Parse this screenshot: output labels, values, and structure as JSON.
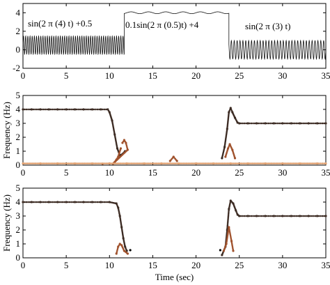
{
  "figure": {
    "xlabel": "Time (sec)",
    "x_ticks": [
      "0",
      "5",
      "10",
      "15",
      "20",
      "25",
      "30",
      "35"
    ]
  },
  "colors": {
    "axis": "#000000",
    "signal": "#111111",
    "series_dark": "#3b2a22",
    "series_mid": "#a0522d",
    "series_light": "#e0a070",
    "series_black": "#000000"
  },
  "chart_data": [
    {
      "type": "line",
      "title": "",
      "xlabel": "",
      "ylabel": "",
      "xlim": [
        0,
        35
      ],
      "ylim": [
        -2,
        5
      ],
      "y_ticks": [
        "-2",
        "0",
        "2",
        "4"
      ],
      "segments": [
        {
          "x_range": [
            0,
            11.7
          ],
          "formula": "sin(2 π (4) t) +0.5",
          "offset": 0.5,
          "amplitude": 1,
          "freq": 4
        },
        {
          "x_range": [
            11.7,
            23.8
          ],
          "formula": "0.1sin(2 π (0.5)t) +4",
          "offset": 4,
          "amplitude": 0.1,
          "freq": 0.5
        },
        {
          "x_range": [
            23.8,
            35.5
          ],
          "formula": "sin(2 π (3) t)",
          "offset": 0,
          "amplitude": 1,
          "freq": 3
        }
      ],
      "annotations": [
        "sin(2 π (4) t) +0.5",
        "0.1sin(2 π (0.5)t) +4",
        "sin(2 π (3) t)"
      ]
    },
    {
      "type": "scatter",
      "xlabel": "",
      "ylabel": "Frequency (Hz)",
      "xlim": [
        0,
        35
      ],
      "ylim": [
        0,
        5
      ],
      "y_ticks": [
        "0",
        "1",
        "2",
        "3",
        "4",
        "5"
      ],
      "series": [
        {
          "values": [
            [
              0,
              4
            ],
            [
              1,
              4
            ],
            [
              2,
              4
            ],
            [
              3,
              4
            ],
            [
              4,
              4
            ],
            [
              5,
              4
            ],
            [
              6,
              4
            ],
            [
              7,
              4
            ],
            [
              8,
              4
            ],
            [
              9,
              4
            ],
            [
              9.8,
              4
            ],
            [
              10,
              3.8
            ],
            [
              10.3,
              3.2
            ],
            [
              10.6,
              2.2
            ],
            [
              10.9,
              1.2
            ],
            [
              11.2,
              0.7
            ],
            [
              11.5,
              0.8
            ],
            [
              11.8,
              1.0
            ]
          ]
        },
        {
          "values": [
            [
              11.5,
              1.6
            ],
            [
              11.7,
              1.8
            ],
            [
              11.9,
              1.6
            ],
            [
              12.1,
              1.1
            ],
            [
              10.4,
              0.1
            ],
            [
              10.8,
              0.4
            ],
            [
              11.0,
              0.6
            ],
            [
              11.3,
              1.2
            ]
          ]
        },
        {
          "values": [
            [
              23,
              0.5
            ],
            [
              23.3,
              1.3
            ],
            [
              23.6,
              2.6
            ],
            [
              23.8,
              3.8
            ],
            [
              24,
              4.1
            ],
            [
              24.2,
              3.8
            ],
            [
              24.5,
              3.4
            ],
            [
              24.8,
              3.05
            ],
            [
              25,
              3
            ],
            [
              26,
              3
            ],
            [
              27,
              3
            ],
            [
              28,
              3
            ],
            [
              29,
              3
            ],
            [
              30,
              3
            ],
            [
              31,
              3
            ],
            [
              32,
              3
            ],
            [
              33,
              3
            ],
            [
              34,
              3
            ],
            [
              35,
              3
            ]
          ]
        },
        {
          "values": [
            [
              23.4,
              0.6
            ],
            [
              23.7,
              1.2
            ],
            [
              23.9,
              1.5
            ],
            [
              24.2,
              1.1
            ],
            [
              24.5,
              0.5
            ],
            [
              9.2,
              0.1
            ],
            [
              17,
              0.3
            ],
            [
              17.4,
              0.6
            ],
            [
              17.8,
              0.3
            ]
          ]
        },
        {
          "values": [
            [
              0,
              0.12
            ],
            [
              2,
              0.12
            ],
            [
              4,
              0.12
            ],
            [
              6,
              0.12
            ],
            [
              8,
              0.12
            ],
            [
              10,
              0.12
            ],
            [
              12,
              0.12
            ],
            [
              14,
              0.12
            ],
            [
              16,
              0.12
            ],
            [
              18,
              0.12
            ],
            [
              20,
              0.12
            ],
            [
              22,
              0.12
            ],
            [
              24,
              0.12
            ],
            [
              26,
              0.12
            ],
            [
              28,
              0.12
            ],
            [
              30,
              0.12
            ],
            [
              32,
              0.12
            ],
            [
              34,
              0.12
            ],
            [
              35,
              0.12
            ]
          ]
        }
      ]
    },
    {
      "type": "scatter",
      "xlabel": "Time (sec)",
      "ylabel": "Frequency (Hz)",
      "xlim": [
        0,
        35
      ],
      "ylim": [
        0,
        5
      ],
      "y_ticks": [
        "0",
        "1",
        "2",
        "3",
        "4",
        "5"
      ],
      "series": [
        {
          "values": [
            [
              0,
              4
            ],
            [
              1,
              4
            ],
            [
              2,
              4
            ],
            [
              3,
              4
            ],
            [
              4,
              4
            ],
            [
              5,
              4
            ],
            [
              6,
              4
            ],
            [
              7,
              4
            ],
            [
              8,
              4
            ],
            [
              9,
              4
            ],
            [
              10,
              4
            ],
            [
              10.8,
              3.9
            ],
            [
              11,
              3.6
            ],
            [
              11.2,
              3.0
            ],
            [
              11.4,
              2.2
            ],
            [
              11.6,
              1.4
            ],
            [
              11.8,
              0.8
            ],
            [
              12,
              0.5
            ]
          ]
        },
        {
          "values": [
            [
              10.8,
              0.3
            ],
            [
              11.0,
              0.8
            ],
            [
              11.2,
              1.0
            ],
            [
              11.4,
              0.9
            ],
            [
              11.7,
              0.5
            ],
            [
              12.1,
              0.3
            ]
          ]
        },
        {
          "values": [
            [
              23,
              0.2
            ],
            [
              23.4,
              0.8
            ],
            [
              23.6,
              2.0
            ],
            [
              23.8,
              3.5
            ],
            [
              24,
              4.1
            ],
            [
              24.3,
              3.9
            ],
            [
              24.6,
              3.4
            ],
            [
              24.8,
              3.1
            ],
            [
              25,
              3.0
            ],
            [
              26,
              3
            ],
            [
              27,
              3
            ],
            [
              28,
              3
            ],
            [
              29,
              3
            ],
            [
              30,
              3
            ],
            [
              31,
              3
            ],
            [
              32,
              3
            ],
            [
              33,
              3
            ],
            [
              34,
              3
            ],
            [
              35,
              3
            ]
          ]
        },
        {
          "values": [
            [
              23.2,
              0.5
            ],
            [
              23.5,
              1.0
            ],
            [
              23.8,
              2.2
            ],
            [
              24.1,
              1.2
            ],
            [
              24.3,
              0.5
            ]
          ]
        },
        {
          "values": [
            [
              12.4,
              0.55
            ],
            [
              22.8,
              0.55
            ]
          ]
        }
      ]
    }
  ]
}
